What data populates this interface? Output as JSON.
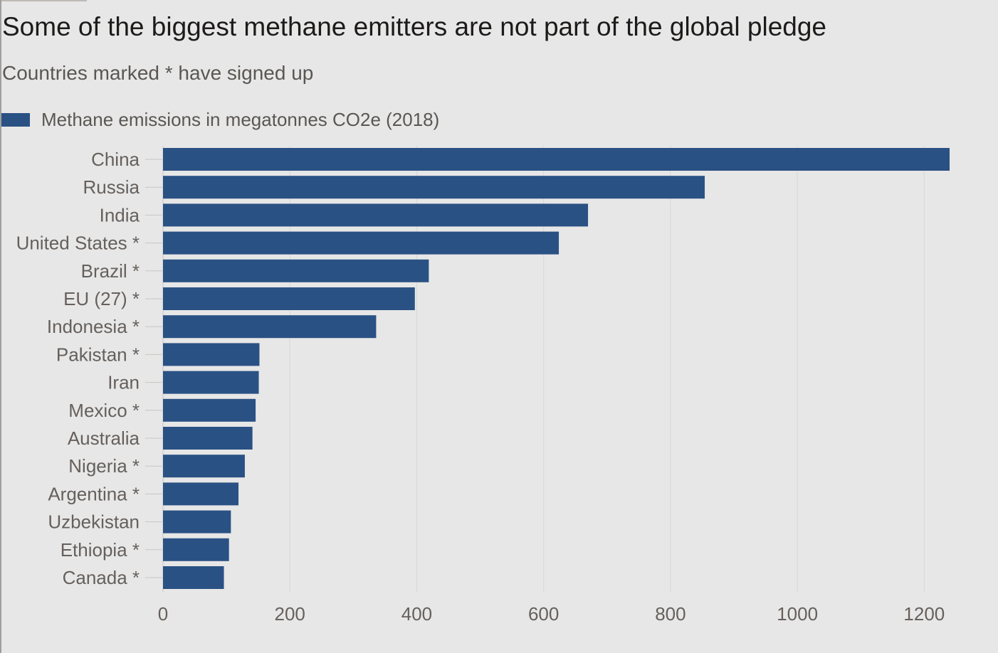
{
  "chart_data": {
    "type": "bar",
    "orientation": "horizontal",
    "title": "Some of the biggest methane emitters are not part of the global pledge",
    "subtitle": "Countries marked * have signed up",
    "legend": [
      "Methane emissions in megatonnes CO2e (2018)"
    ],
    "legend_placement": "top-left",
    "categories": [
      "China",
      "Russia",
      "India",
      "United States *",
      "Brazil *",
      "EU (27) *",
      "Indonesia *",
      "Pakistan *",
      "Iran",
      "Mexico *",
      "Australia",
      "Nigeria *",
      "Argentina *",
      "Uzbekistan",
      "Ethiopia *",
      "Canada *"
    ],
    "series": [
      {
        "name": "Methane emissions in megatonnes CO2e (2018)",
        "values": [
          1240,
          854,
          670,
          624,
          419,
          397,
          336,
          152,
          151,
          146,
          141,
          129,
          119,
          107,
          104,
          96
        ]
      }
    ],
    "x_ticks": [
      0,
      200,
      400,
      600,
      800,
      1000,
      1200
    ],
    "xlim": [
      0,
      1240
    ],
    "grid": true,
    "colors": {
      "bar": "#2a5184",
      "background": "#e7e7e7"
    }
  }
}
